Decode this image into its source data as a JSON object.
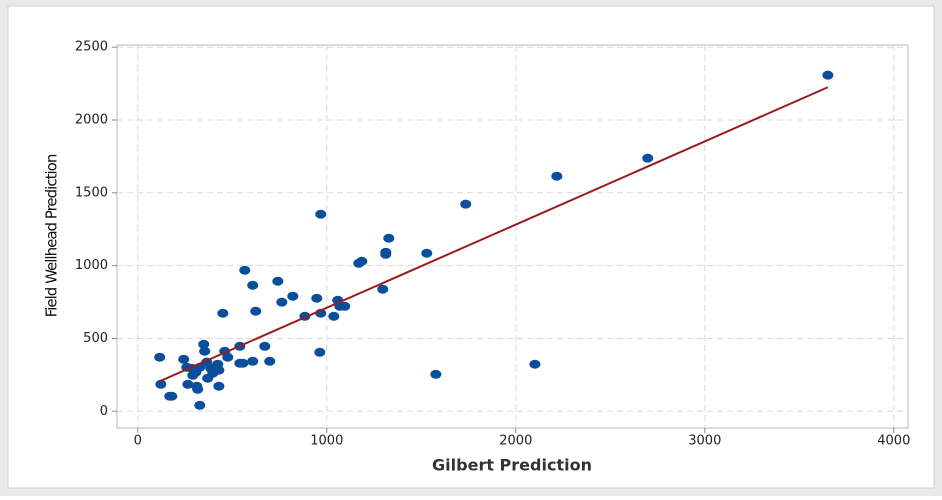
{
  "chart_data": {
    "type": "scatter",
    "x_label": "Gilbert Prediction",
    "y_label": "Field Wellhead Prediction",
    "x": [
      116,
      122,
      169,
      180,
      243,
      259,
      265,
      286,
      291,
      307,
      312,
      317,
      328,
      328,
      349,
      354,
      365,
      370,
      386,
      397,
      407,
      423,
      429,
      429,
      450,
      460,
      476,
      540,
      540,
      556,
      566,
      608,
      608,
      624,
      672,
      698,
      741,
      762,
      820,
      884,
      947,
      968,
      963,
      968,
      1037,
      1058,
      1069,
      1095,
      1169,
      1185,
      1296,
      1312,
      1312,
      1328,
      1529,
      1577,
      1735,
      2101,
      2217,
      2698,
      3651
    ],
    "y": [
      371,
      185,
      103,
      103,
      357,
      302,
      185,
      295,
      247,
      268,
      172,
      151,
      41,
      302,
      460,
      412,
      337,
      227,
      295,
      261,
      288,
      323,
      172,
      282,
      673,
      412,
      371,
      446,
      330,
      330,
      968,
      865,
      343,
      687,
      446,
      343,
      893,
      749,
      790,
      652,
      776,
      1353,
      405,
      673,
      652,
      762,
      721,
      721,
      1016,
      1030,
      838,
      1078,
      1092,
      1188,
      1085,
      254,
      1422,
      323,
      1614,
      1738,
      2308
    ],
    "color": "#0b4f9c",
    "fit": {
      "x": [
        116,
        3651
      ],
      "y": [
        206,
        2225
      ],
      "color": "#9b1c1c"
    },
    "xlim": [
      -110,
      4075
    ],
    "ylim": [
      -115,
      2515
    ],
    "xticks": [
      0,
      1000,
      2000,
      3000,
      4000
    ],
    "yticks": [
      0,
      500,
      1000,
      1500,
      2000,
      2500
    ],
    "grid": true
  }
}
